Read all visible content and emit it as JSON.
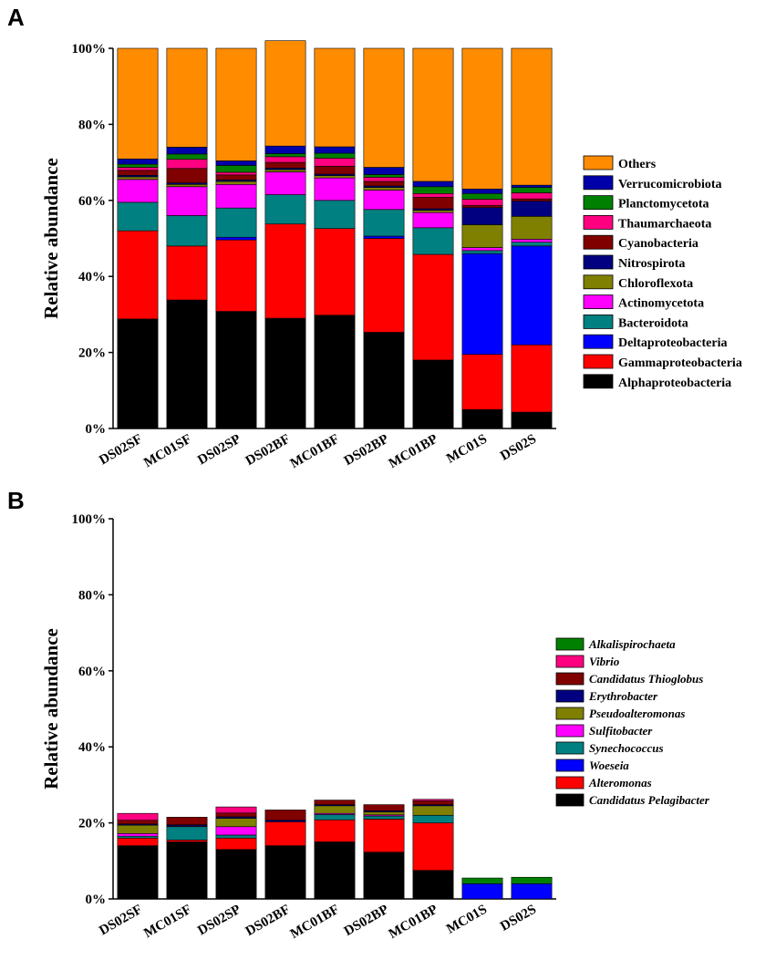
{
  "chart_data": [
    {
      "panel": "A",
      "type": "bar",
      "stacked": true,
      "ylabel": "Relative abundance",
      "ylim": [
        0,
        100
      ],
      "yticks": [
        "0%",
        "20%",
        "40%",
        "60%",
        "80%",
        "100%"
      ],
      "categories": [
        "DS02SF",
        "MC01SF",
        "DS02SP",
        "DS02BF",
        "MC01BF",
        "DS02BP",
        "MC01BP",
        "MC01S",
        "DS02S"
      ],
      "legend_position": "right",
      "series": [
        {
          "name": "Alphaproteobacteria",
          "color": "#000000",
          "values": [
            28.8,
            33.8,
            30.8,
            29.0,
            29.8,
            25.3,
            18.0,
            5.0,
            4.3
          ]
        },
        {
          "name": "Gammaproteobacteria",
          "color": "#ff0000",
          "values": [
            23.2,
            14.2,
            18.8,
            24.8,
            22.8,
            24.7,
            27.8,
            14.5,
            17.7
          ]
        },
        {
          "name": "Deltaproteobacteria",
          "color": "#0000ff",
          "values": [
            0.0,
            0.0,
            0.7,
            0.0,
            0.0,
            0.6,
            0.0,
            26.5,
            26.0
          ]
        },
        {
          "name": "Bacteroidota",
          "color": "#008080",
          "values": [
            7.5,
            8.0,
            7.7,
            7.7,
            7.4,
            7.0,
            7.0,
            0.8,
            1.0
          ]
        },
        {
          "name": "Actinomycetota",
          "color": "#ff00ff",
          "values": [
            6.0,
            7.6,
            6.2,
            6.0,
            5.9,
            5.1,
            4.0,
            0.8,
            0.8
          ]
        },
        {
          "name": "Chloroflexota",
          "color": "#808000",
          "values": [
            0.7,
            0.6,
            0.8,
            0.6,
            0.6,
            0.7,
            0.6,
            6.0,
            6.0
          ]
        },
        {
          "name": "Nitrospirota",
          "color": "#000080",
          "values": [
            0.4,
            0.4,
            0.4,
            0.4,
            0.4,
            0.4,
            0.4,
            4.5,
            4.0
          ]
        },
        {
          "name": "Cyanobacteria",
          "color": "#800000",
          "values": [
            1.3,
            3.8,
            1.3,
            1.5,
            2.1,
            1.2,
            3.0,
            0.6,
            0.6
          ]
        },
        {
          "name": "Thaumarchaeota",
          "color": "#ff0080",
          "values": [
            0.8,
            2.4,
            0.7,
            1.5,
            2.1,
            1.1,
            1.0,
            1.6,
            1.6
          ]
        },
        {
          "name": "Planctomycetota",
          "color": "#008000",
          "values": [
            0.8,
            1.4,
            1.8,
            0.8,
            1.3,
            0.7,
            1.8,
            1.5,
            1.4
          ]
        },
        {
          "name": "Verrucomicrobiota",
          "color": "#0000aa",
          "values": [
            1.4,
            1.8,
            1.2,
            2.0,
            1.7,
            1.9,
            1.4,
            1.2,
            0.6
          ]
        },
        {
          "name": "Others",
          "color": "#ff8c00",
          "values": [
            29.1,
            26.0,
            29.6,
            27.7,
            25.9,
            31.3,
            35.0,
            37.0,
            36.0
          ]
        }
      ]
    },
    {
      "panel": "B",
      "type": "bar",
      "stacked": true,
      "ylabel": "Relative abundance",
      "ylim": [
        0,
        100
      ],
      "yticks": [
        "0%",
        "20%",
        "40%",
        "60%",
        "80%",
        "100%"
      ],
      "categories": [
        "DS02SF",
        "MC01SF",
        "DS02SP",
        "DS02BF",
        "MC01BF",
        "DS02BP",
        "MC01BP",
        "MC01S",
        "DS02S"
      ],
      "legend_position": "right",
      "series": [
        {
          "name": "Candidatus Pelagibacter",
          "color": "#000000",
          "values": [
            14.0,
            15.0,
            13.0,
            14.0,
            15.0,
            12.3,
            7.5,
            0.0,
            0.0
          ]
        },
        {
          "name": "Alteromonas",
          "color": "#ff0000",
          "values": [
            2.0,
            0.5,
            3.0,
            6.3,
            5.8,
            8.7,
            12.5,
            0.0,
            0.0
          ]
        },
        {
          "name": "Woeseia",
          "color": "#0000ff",
          "values": [
            0.0,
            0.0,
            0.0,
            0.0,
            0.0,
            0.0,
            0.0,
            4.0,
            4.0
          ]
        },
        {
          "name": "Synechococcus",
          "color": "#008080",
          "values": [
            0.5,
            3.5,
            0.8,
            0.0,
            1.4,
            0.8,
            2.0,
            0.0,
            0.0
          ]
        },
        {
          "name": "Sulfitobacter",
          "color": "#ff00ff",
          "values": [
            0.7,
            0.2,
            2.2,
            0.0,
            0.3,
            0.3,
            0.0,
            0.0,
            0.0
          ]
        },
        {
          "name": "Pseudoalteromonas",
          "color": "#808000",
          "values": [
            2.2,
            0.0,
            2.2,
            0.0,
            2.0,
            0.8,
            2.5,
            0.0,
            0.0
          ]
        },
        {
          "name": "Erythrobacter",
          "color": "#000080",
          "values": [
            0.3,
            0.3,
            0.4,
            0.4,
            0.3,
            0.3,
            0.3,
            0.0,
            0.0
          ]
        },
        {
          "name": "Candidatus Thioglobus",
          "color": "#800000",
          "values": [
            1.0,
            2.0,
            1.0,
            2.7,
            1.2,
            1.6,
            1.0,
            0.0,
            0.0
          ]
        },
        {
          "name": "Vibrio",
          "color": "#ff0080",
          "values": [
            1.8,
            0.0,
            1.6,
            0.0,
            0.0,
            0.0,
            0.4,
            0.0,
            0.0
          ]
        },
        {
          "name": "Alkalispirochaeta",
          "color": "#008000",
          "values": [
            0.0,
            0.0,
            0.0,
            0.0,
            0.0,
            0.0,
            0.0,
            1.5,
            1.7
          ]
        }
      ]
    }
  ]
}
